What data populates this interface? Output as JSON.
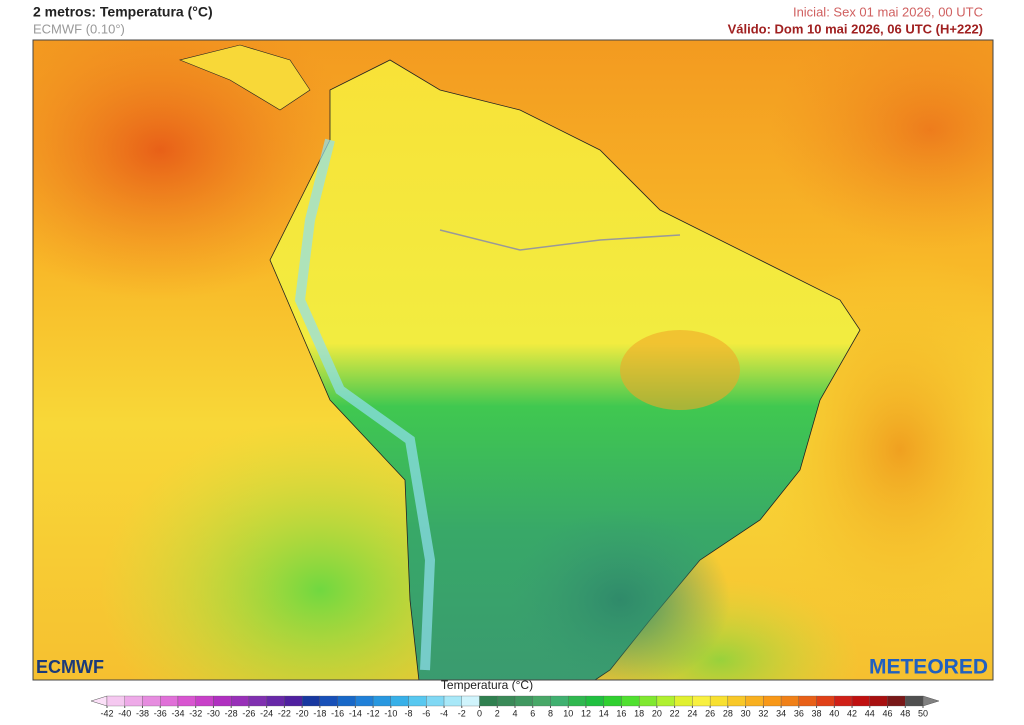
{
  "header": {
    "title": "2 metros: Temperatura (°C)",
    "model": "ECMWF (0.10°)",
    "initial": "Inicial: Sex 01 mai 2026, 00 UTC",
    "valid": "Válido: Dom 10 mai 2026, 06 UTC (H+222)"
  },
  "logos": {
    "left": "ECMWF",
    "right": "METEORED"
  },
  "colorbar": {
    "title": "Temperatura (°C)",
    "ticks": [
      -42,
      -40,
      -38,
      -36,
      -34,
      -32,
      -30,
      -28,
      -26,
      -24,
      -22,
      -20,
      -18,
      -16,
      -14,
      -12,
      -10,
      -8,
      -6,
      -4,
      -2,
      0,
      2,
      4,
      6,
      8,
      10,
      12,
      14,
      16,
      18,
      20,
      22,
      24,
      26,
      28,
      30,
      32,
      34,
      36,
      38,
      40,
      42,
      44,
      46,
      48,
      50
    ],
    "colors": [
      "#fbe0f8",
      "#f5c8f0",
      "#eeaae8",
      "#e68cdf",
      "#e070d8",
      "#d855d0",
      "#c840c8",
      "#b030c0",
      "#9830b8",
      "#8030b0",
      "#6828a8",
      "#5020a0",
      "#1838a0",
      "#1850b8",
      "#1868c8",
      "#2080d8",
      "#2898e0",
      "#38b0e8",
      "#58c8f0",
      "#80d8f4",
      "#a8e8f8",
      "#d0f4fc",
      "#308050",
      "#3a8a58",
      "#409860",
      "#48a868",
      "#40b070",
      "#30b850",
      "#20c040",
      "#30d030",
      "#50e030",
      "#80e830",
      "#b0f030",
      "#e0f030",
      "#f8f040",
      "#f8e030",
      "#f8c828",
      "#f8b020",
      "#f89818",
      "#f08018",
      "#e86018",
      "#e04018",
      "#d02018",
      "#c01010",
      "#a81010",
      "#781818",
      "#505050",
      "#808080"
    ]
  }
}
